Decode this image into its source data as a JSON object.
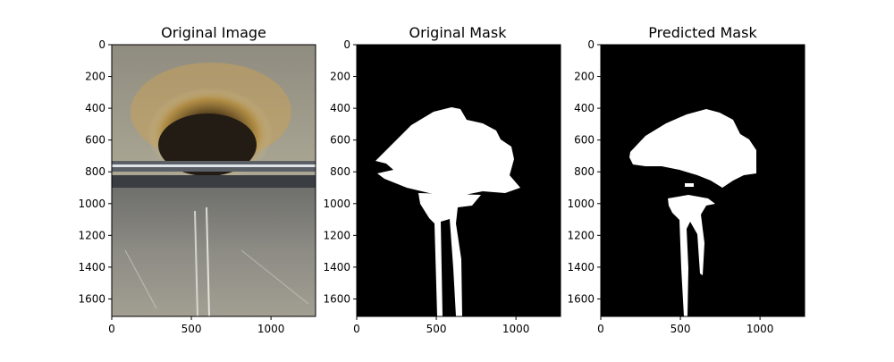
{
  "chart_data": [
    {
      "type": "image",
      "title": "Original Image",
      "xticks": [
        0,
        500,
        1000
      ],
      "yticks": [
        0,
        200,
        400,
        600,
        800,
        1000,
        1200,
        1400,
        1600
      ],
      "xlim": [
        0,
        1280
      ],
      "ylim": [
        1710,
        0
      ]
    },
    {
      "type": "image",
      "title": "Original Mask",
      "xticks": [
        0,
        500,
        1000
      ],
      "yticks": [
        0,
        200,
        400,
        600,
        800,
        1000,
        1200,
        1400,
        1600
      ],
      "xlim": [
        0,
        1280
      ],
      "ylim": [
        1710,
        0
      ]
    },
    {
      "type": "image",
      "title": "Predicted Mask",
      "xticks": [
        0,
        500,
        1000
      ],
      "yticks": [
        0,
        200,
        400,
        600,
        800,
        1000,
        1200,
        1400,
        1600
      ],
      "xlim": [
        0,
        1280
      ],
      "ylim": [
        1710,
        0
      ]
    }
  ],
  "colors": {
    "mask_bg": "#000000",
    "mask_fg": "#ffffff",
    "axis": "#000000"
  }
}
